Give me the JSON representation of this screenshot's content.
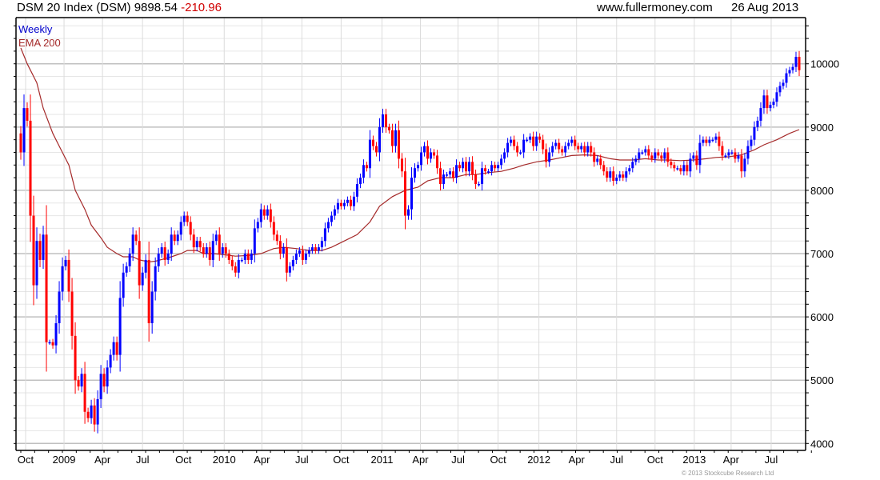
{
  "header": {
    "title": "DSM 20 Index (DSM) 9898.54",
    "change": "-210.96",
    "site": "www.fullermoney.com",
    "date": "26 Aug 2013"
  },
  "legend": {
    "series": "Weekly",
    "ema": "EMA 200"
  },
  "copyright": "© 2013 Stockcube Research Ltd",
  "colors": {
    "up": "#0000ff",
    "down": "#ff0000",
    "ema": "#a52a2a",
    "grid_major": "#c0c0c0",
    "grid_minor": "#e6e6e6"
  },
  "chart_data": {
    "type": "candlestick",
    "title": "DSM 20 Index (DSM) weekly",
    "ylim": [
      3890,
      10730
    ],
    "y_ticks": [
      4000,
      5000,
      6000,
      7000,
      8000,
      9000,
      10000
    ],
    "y_tick_labels": [
      "4000",
      "5000",
      "6000",
      "7000",
      "8000",
      "9000",
      "10000"
    ],
    "x_ticks": [
      {
        "label": "Oct",
        "week": 1.5
      },
      {
        "label": "2009",
        "week": 13.5
      },
      {
        "label": "Apr",
        "week": 25.5
      },
      {
        "label": "Jul",
        "week": 38
      },
      {
        "label": "Oct",
        "week": 50.75
      },
      {
        "label": "2010",
        "week": 63.5
      },
      {
        "label": "Apr",
        "week": 75.25
      },
      {
        "label": "Jul",
        "week": 87.75
      },
      {
        "label": "Oct",
        "week": 100
      },
      {
        "label": "2011",
        "week": 112.75
      },
      {
        "label": "Apr",
        "week": 124.75
      },
      {
        "label": "Jul",
        "week": 136.5
      },
      {
        "label": "Oct",
        "week": 149
      },
      {
        "label": "2012",
        "week": 161.75
      },
      {
        "label": "Apr",
        "week": 173.5
      },
      {
        "label": "Jul",
        "week": 186
      },
      {
        "label": "Oct",
        "week": 198
      },
      {
        "label": "2013",
        "week": 210.25
      },
      {
        "label": "Apr",
        "week": 221.75
      },
      {
        "label": "Jul",
        "week": 234.25
      }
    ],
    "weekly_close": [
      8600,
      9300,
      9100,
      7600,
      6500,
      7200,
      6900,
      7300,
      5600,
      5600,
      5550,
      5900,
      6400,
      6800,
      6900,
      6400,
      5700,
      5000,
      4900,
      5100,
      4500,
      4400,
      4600,
      4300,
      4700,
      5100,
      4900,
      5200,
      5400,
      5600,
      5400,
      6300,
      6700,
      6800,
      7000,
      7300,
      7200,
      6500,
      6700,
      6900,
      5900,
      6400,
      6800,
      7000,
      7100,
      6900,
      7000,
      7300,
      7200,
      7300,
      7500,
      7600,
      7500,
      7300,
      7100,
      7200,
      7100,
      7000,
      7100,
      6900,
      7200,
      7300,
      7000,
      7100,
      7000,
      6900,
      6800,
      6700,
      6900,
      6900,
      7000,
      6900,
      7000,
      7400,
      7500,
      7700,
      7600,
      7700,
      7500,
      7300,
      7200,
      7000,
      7100,
      6700,
      6800,
      6900,
      7000,
      7050,
      6900,
      7000,
      7050,
      7100,
      7050,
      7100,
      7200,
      7400,
      7500,
      7600,
      7700,
      7800,
      7750,
      7800,
      7850,
      7750,
      7900,
      8100,
      8200,
      8400,
      8350,
      8800,
      8700,
      8600,
      9000,
      9200,
      9000,
      8950,
      8700,
      8950,
      8500,
      8300,
      7600,
      7700,
      8200,
      8350,
      8400,
      8600,
      8700,
      8500,
      8600,
      8550,
      8350,
      8100,
      8250,
      8250,
      8300,
      8200,
      8400,
      8350,
      8450,
      8300,
      8450,
      8250,
      8100,
      8100,
      8350,
      8300,
      8300,
      8400,
      8350,
      8400,
      8500,
      8600,
      8750,
      8800,
      8700,
      8600,
      8600,
      8800,
      8800,
      8850,
      8700,
      8850,
      8800,
      8650,
      8450,
      8600,
      8700,
      8750,
      8650,
      8600,
      8700,
      8750,
      8800,
      8700,
      8650,
      8700,
      8600,
      8700,
      8600,
      8450,
      8500,
      8400,
      8300,
      8200,
      8300,
      8150,
      8200,
      8250,
      8200,
      8300,
      8350,
      8450,
      8500,
      8600,
      8600,
      8650,
      8550,
      8500,
      8600,
      8550,
      8500,
      8600,
      8450,
      8400,
      8350,
      8350,
      8300,
      8400,
      8300,
      8500,
      8550,
      8400,
      8750,
      8800,
      8750,
      8800,
      8800,
      8850,
      8700,
      8550,
      8550,
      8600,
      8600,
      8500,
      8550,
      8300,
      8500,
      8700,
      8800,
      9000,
      9100,
      9300,
      9500,
      9300,
      9350,
      9400,
      9550,
      9650,
      9700,
      9850,
      9900,
      9950,
      10110,
      9899
    ],
    "ema200": [
      [
        0,
        10250
      ],
      [
        2,
        10000
      ],
      [
        5,
        9700
      ],
      [
        7,
        9300
      ],
      [
        10,
        8900
      ],
      [
        12,
        8700
      ],
      [
        15,
        8400
      ],
      [
        17,
        8000
      ],
      [
        20,
        7700
      ],
      [
        22,
        7450
      ],
      [
        25,
        7250
      ],
      [
        27,
        7100
      ],
      [
        30,
        7000
      ],
      [
        32,
        6950
      ],
      [
        35,
        6950
      ],
      [
        37,
        6900
      ],
      [
        40,
        6870
      ],
      [
        42,
        6880
      ],
      [
        45,
        6920
      ],
      [
        47,
        6950
      ],
      [
        50,
        7000
      ],
      [
        52,
        7050
      ],
      [
        55,
        7050
      ],
      [
        57,
        7000
      ],
      [
        60,
        7000
      ],
      [
        64,
        6980
      ],
      [
        67,
        6960
      ],
      [
        71,
        6970
      ],
      [
        75,
        7000
      ],
      [
        79,
        7080
      ],
      [
        82,
        7100
      ],
      [
        86,
        7080
      ],
      [
        90,
        7050
      ],
      [
        94,
        7050
      ],
      [
        97,
        7100
      ],
      [
        101,
        7200
      ],
      [
        105,
        7300
      ],
      [
        109,
        7500
      ],
      [
        112,
        7750
      ],
      [
        116,
        7900
      ],
      [
        120,
        8000
      ],
      [
        124,
        8050
      ],
      [
        127,
        8150
      ],
      [
        131,
        8200
      ],
      [
        135,
        8200
      ],
      [
        139,
        8250
      ],
      [
        142,
        8250
      ],
      [
        146,
        8280
      ],
      [
        150,
        8300
      ],
      [
        154,
        8350
      ],
      [
        157,
        8400
      ],
      [
        161,
        8450
      ],
      [
        165,
        8480
      ],
      [
        169,
        8520
      ],
      [
        172,
        8550
      ],
      [
        176,
        8560
      ],
      [
        180,
        8550
      ],
      [
        184,
        8500
      ],
      [
        187,
        8480
      ],
      [
        191,
        8480
      ],
      [
        195,
        8500
      ],
      [
        199,
        8480
      ],
      [
        202,
        8480
      ],
      [
        206,
        8470
      ],
      [
        210,
        8480
      ],
      [
        214,
        8500
      ],
      [
        217,
        8520
      ],
      [
        221,
        8530
      ],
      [
        225,
        8560
      ],
      [
        229,
        8640
      ],
      [
        232,
        8720
      ],
      [
        236,
        8800
      ],
      [
        240,
        8900
      ],
      [
        243,
        8960
      ]
    ]
  }
}
